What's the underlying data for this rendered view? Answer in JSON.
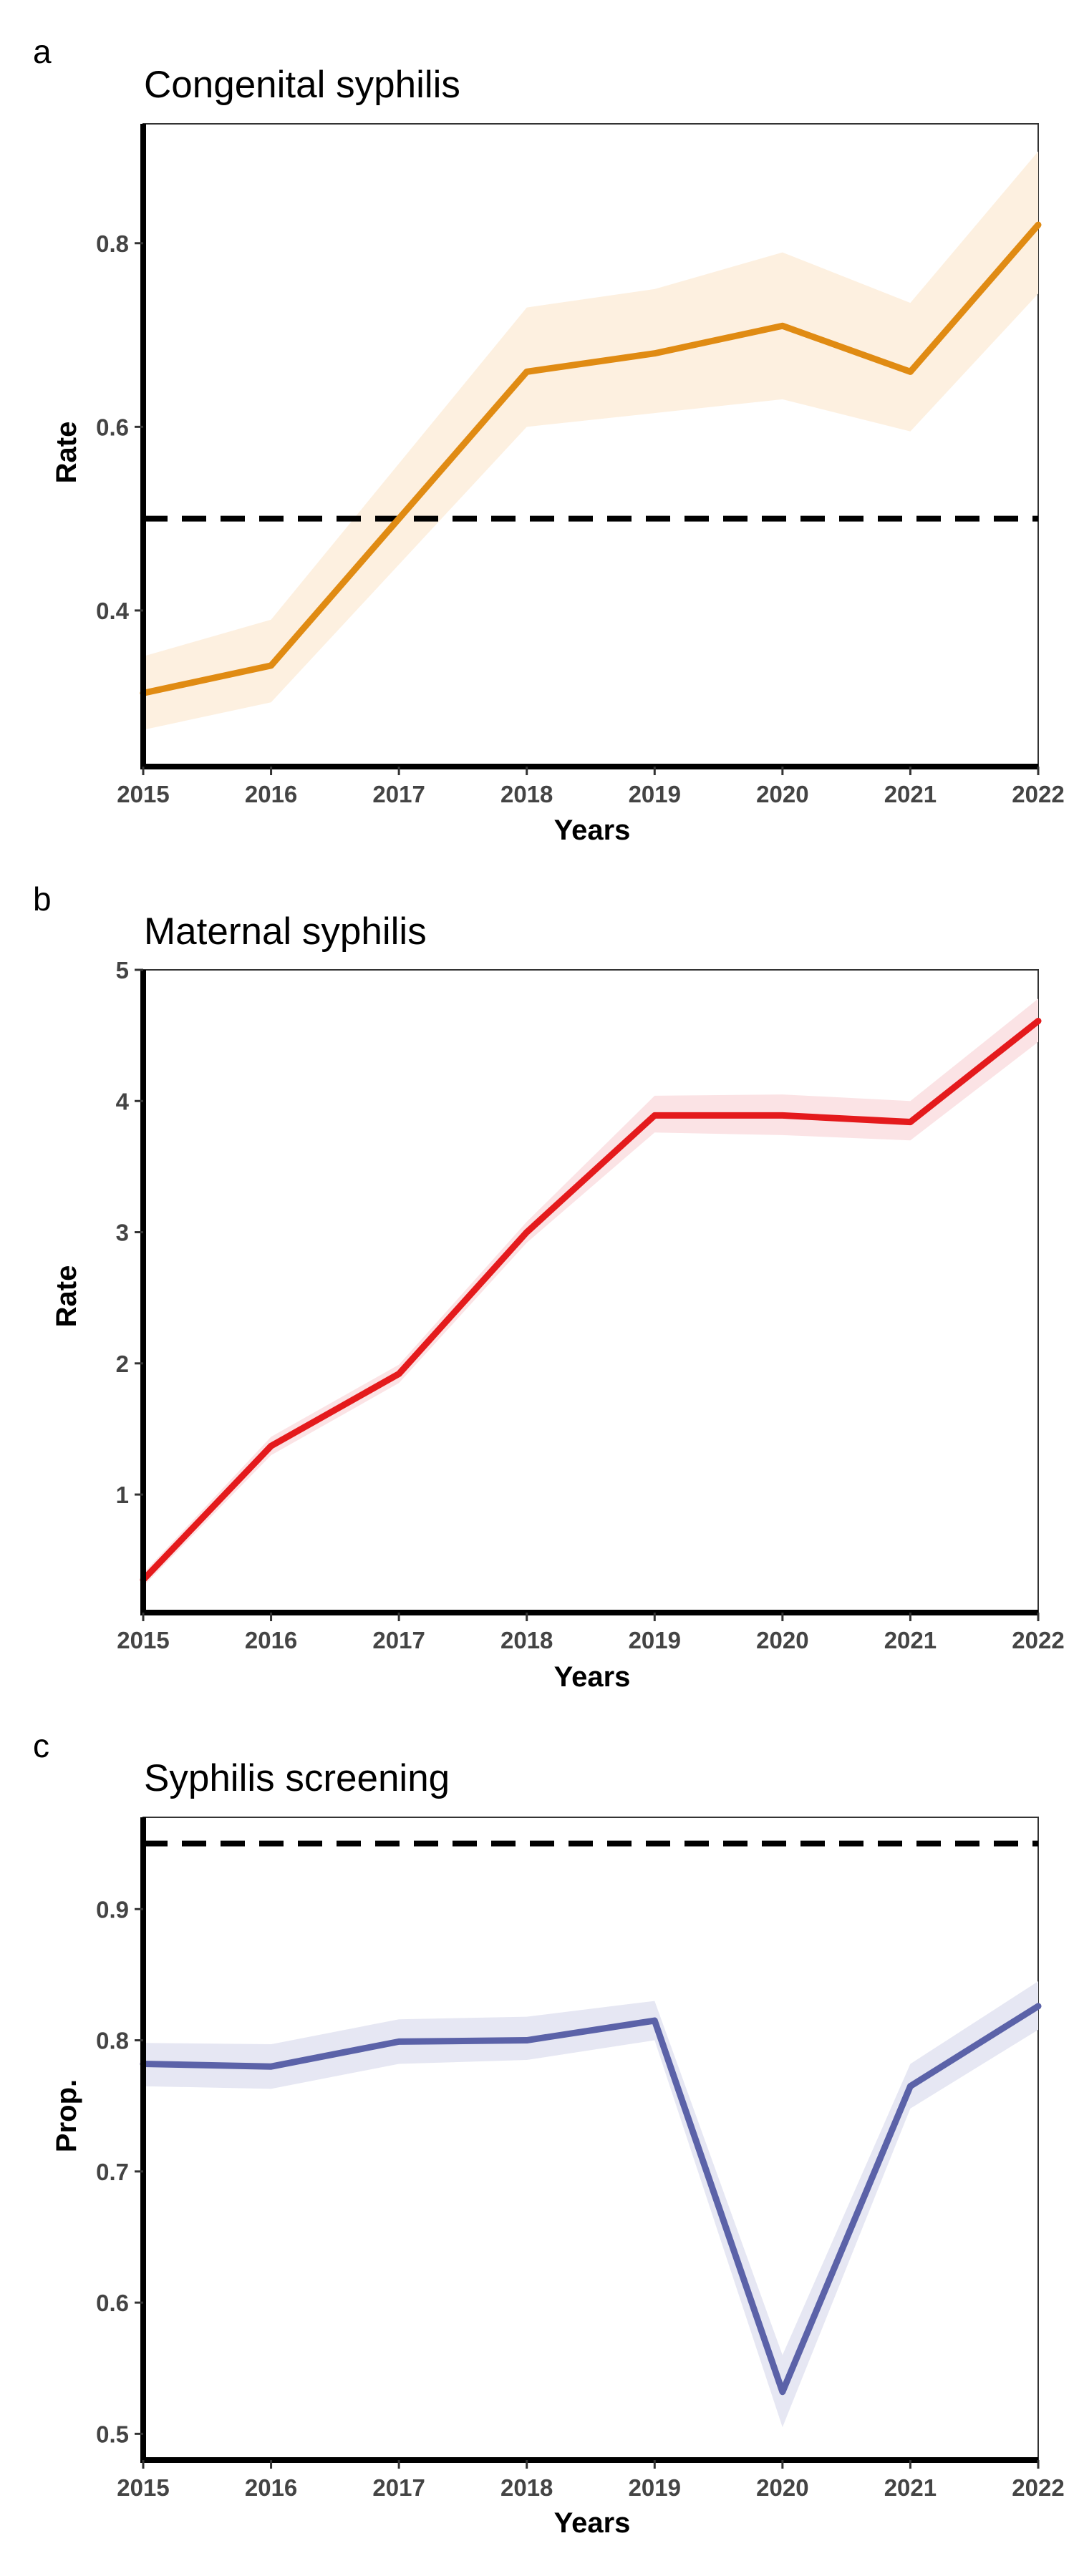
{
  "chart_data": [
    {
      "type": "line",
      "panel_letter": "a",
      "title": "Congenital syphilis",
      "xlabel": "Years",
      "ylabel": "Rate",
      "x": [
        2015,
        2016,
        2017,
        2018,
        2019,
        2020,
        2021,
        2022
      ],
      "x_ticks": [
        "2015",
        "2016",
        "2017",
        "2018",
        "2019",
        "2020",
        "2021",
        "2022"
      ],
      "y_ticks": [
        "0.4",
        "0.6",
        "0.8"
      ],
      "ylim": [
        0.23,
        0.93
      ],
      "grid": false,
      "series": [
        {
          "values": [
            0.31,
            0.34,
            0.5,
            0.66,
            0.68,
            0.71,
            0.66,
            0.82
          ],
          "lower": [
            0.27,
            0.3,
            0.45,
            0.6,
            0.615,
            0.63,
            0.595,
            0.745
          ],
          "upper": [
            0.35,
            0.39,
            0.56,
            0.73,
            0.75,
            0.79,
            0.735,
            0.9
          ],
          "color": "#E08B13",
          "band_color": "#FDF0E0"
        }
      ],
      "reference_line": {
        "y": 0.5,
        "style": "dashed",
        "color": "#000000"
      }
    },
    {
      "type": "line",
      "panel_letter": "b",
      "title": "Maternal syphilis",
      "xlabel": "Years",
      "ylabel": "Rate",
      "x": [
        2015,
        2016,
        2017,
        2018,
        2019,
        2020,
        2021,
        2022
      ],
      "x_ticks": [
        "2015",
        "2016",
        "2017",
        "2018",
        "2019",
        "2020",
        "2021",
        "2022"
      ],
      "y_ticks": [
        "1",
        "2",
        "3",
        "4",
        "5"
      ],
      "ylim": [
        0.1,
        5.0
      ],
      "grid": false,
      "series": [
        {
          "values": [
            0.35,
            1.37,
            1.92,
            3.0,
            3.89,
            3.89,
            3.84,
            4.61
          ],
          "lower": [
            0.3,
            1.3,
            1.85,
            2.92,
            3.76,
            3.74,
            3.7,
            4.45
          ],
          "upper": [
            0.4,
            1.44,
            1.99,
            3.08,
            4.04,
            4.05,
            4.0,
            4.78
          ],
          "color": "#E41A1C",
          "band_color": "#FBE3E5"
        }
      ]
    },
    {
      "type": "line",
      "panel_letter": "c",
      "title": "Syphilis screening",
      "xlabel": "Years",
      "ylabel": "Prop.",
      "x": [
        2015,
        2016,
        2017,
        2018,
        2019,
        2020,
        2021,
        2022
      ],
      "x_ticks": [
        "2015",
        "2016",
        "2017",
        "2018",
        "2019",
        "2020",
        "2021",
        "2022"
      ],
      "y_ticks": [
        "0.5",
        "0.6",
        "0.7",
        "0.8",
        "0.9"
      ],
      "ylim": [
        0.48,
        0.97
      ],
      "grid": false,
      "series": [
        {
          "values": [
            0.782,
            0.78,
            0.799,
            0.8,
            0.815,
            0.532,
            0.765,
            0.826
          ],
          "lower": [
            0.765,
            0.763,
            0.782,
            0.785,
            0.8,
            0.505,
            0.748,
            0.808
          ],
          "upper": [
            0.798,
            0.797,
            0.816,
            0.818,
            0.83,
            0.56,
            0.782,
            0.845
          ],
          "color": "#5B62A8",
          "band_color": "#E6E7F3"
        }
      ],
      "reference_line": {
        "y": 0.95,
        "style": "dashed",
        "color": "#000000"
      }
    }
  ]
}
